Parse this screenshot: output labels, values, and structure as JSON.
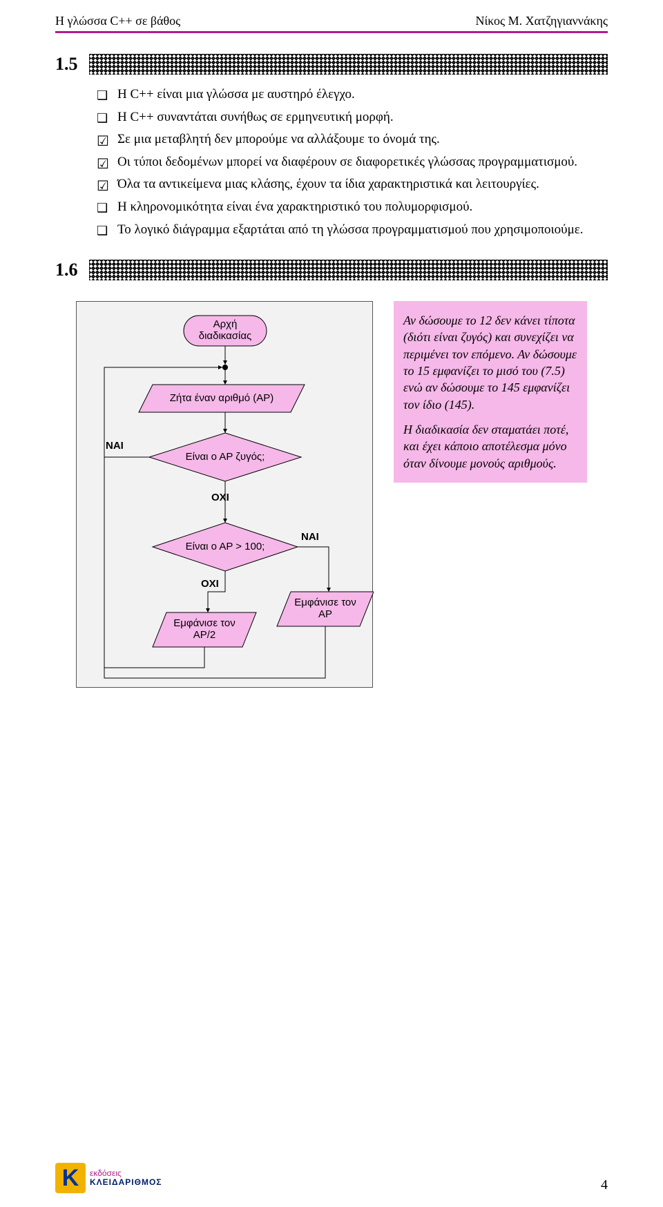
{
  "header": {
    "left": "Η γλώσσα C++ σε βάθος",
    "right": "Νίκος Μ. Χατζηγιαννάκης"
  },
  "sections": [
    {
      "number": "1.5",
      "items": [
        {
          "marker": "square",
          "text": "Η C++ είναι μια γλώσσα με αυστηρό έλεγχο."
        },
        {
          "marker": "square",
          "text": "Η C++ συναντάται συνήθως σε ερμηνευτική μορφή."
        },
        {
          "marker": "checked",
          "text": "Σε μια μεταβλητή δεν μπορούμε να αλλάξουμε το όνομά της."
        },
        {
          "marker": "checked",
          "text": "Οι τύποι δεδομένων μπορεί να διαφέρουν σε διαφορετικές γλώσσας προγραμματισμού."
        },
        {
          "marker": "checked",
          "text": "Όλα τα αντικείμενα μιας κλάσης, έχουν τα ίδια χαρακτηριστικά και λειτουργίες."
        },
        {
          "marker": "square",
          "text": "Η κληρονομικότητα είναι ένα χαρακτηριστικό του πολυμορφισμού."
        },
        {
          "marker": "square",
          "text": "Το λογικό διάγραμμα εξαρτάται από τη γλώσσα προγραμματισμού που χρησιμοποιούμε."
        }
      ]
    },
    {
      "number": "1.6",
      "items": []
    }
  ],
  "flowchart": {
    "bg": "#f2f2f2",
    "shape_fill": "#f5b8e8",
    "shape_stroke": "#000000",
    "nodes": {
      "start": {
        "label": "Αρχή\nδιαδικασίας"
      },
      "input": {
        "label": "Ζήτα έναν αριθμό (ΑΡ)"
      },
      "dec1": {
        "label": "Είναι ο ΑΡ ζυγός;"
      },
      "dec2": {
        "label": "Είναι ο ΑΡ > 100;"
      },
      "out_half": {
        "label": "Εμφάνισε τον\nΑΡ/2"
      },
      "out_ar": {
        "label": "Εμφάνισε τον\nΑΡ"
      }
    },
    "labels": {
      "yes": "ΝΑΙ",
      "no": "ΟΧΙ"
    }
  },
  "note": {
    "p1": "Αν δώσουμε το 12 δεν κάνει τίποτα (διότι είναι ζυγός) και συνεχίζει να περιμένει τον επόμενο. Αν δώσουμε το 15 εμφανίζει το μισό του (7.5) ενώ αν δώσουμε το 145 εμφανίζει τον ίδιο (145).",
    "p2": "Η διαδικασία δεν σταματάει ποτέ, και έχει κάποιο αποτέλεσμα μόνο όταν δίνουμε μονούς αριθμούς."
  },
  "footer": {
    "logo_k": "K",
    "logo_line1": "εκδόσεις",
    "logo_line2": "ΚΛΕΙΔΑΡΙΘΜΟΣ",
    "page": "4"
  }
}
